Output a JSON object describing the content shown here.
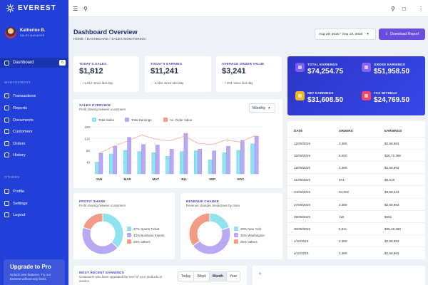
{
  "brand": {
    "name": "EVEREST"
  },
  "profile": {
    "name": "Katherine B.",
    "role": "SALES MANAGER"
  },
  "nav": {
    "dashboard_label": "Dashboard",
    "dashboard_badge": "6",
    "management_heading": "MANAGEMENT",
    "items": [
      {
        "label": "Transactions",
        "icon": "transactions-icon"
      },
      {
        "label": "Reports",
        "icon": "reports-icon"
      },
      {
        "label": "Documents",
        "icon": "documents-icon"
      },
      {
        "label": "Customers",
        "icon": "customers-icon"
      },
      {
        "label": "Orders",
        "icon": "orders-icon"
      },
      {
        "label": "History",
        "icon": "history-icon"
      }
    ],
    "others_heading": "OTHERS",
    "others": [
      {
        "label": "Profile",
        "icon": "profile-icon"
      },
      {
        "label": "Settings",
        "icon": "settings-icon"
      },
      {
        "label": "Logout",
        "icon": "logout-icon"
      }
    ]
  },
  "upgrade": {
    "title": "Upgrade to Pro",
    "text": "Unlock new features. Try out Everest without any limits"
  },
  "header": {
    "title": "Dashboard Overview",
    "breadcrumb": "HOME  /  DASHBOARD  /  SALES MONITORING",
    "date_range": "Aug 28, 2020 - Sep 19, 2020",
    "download_label": "Download Report"
  },
  "stats": [
    {
      "label": "TODAY'S SALES",
      "value": "$1,812",
      "direction": "up",
      "change": "+1,512",
      "period": "since last day"
    },
    {
      "label": "TODAY'S EARNING",
      "value": "$11,241",
      "direction": "down",
      "change": "-1,163",
      "period": "since last day"
    },
    {
      "label": "AVERAGE ORDER VALUE",
      "value": "$3,241",
      "direction": "up",
      "change": "+203",
      "period": "since last day"
    }
  ],
  "kpis": [
    {
      "label": "TOTAL EARNINGS",
      "value": "$74,254.75",
      "color": "#7b5cf5"
    },
    {
      "label": "GROSS EARNINGS",
      "value": "$51,958.50",
      "color": "#8a62f7"
    },
    {
      "label": "NET EARNINGS",
      "value": "$31,608.50",
      "color": "#f2b621"
    },
    {
      "label": "TAX WITHELD",
      "value": "$24,769.50",
      "color": "#f0476a"
    }
  ],
  "sales_overview": {
    "title": "SALES OVERVIEW",
    "subtitle": "Profit sharing between customers",
    "period_select": "Monthly",
    "chart_data": {
      "type": "bar",
      "categories": [
        "JAN",
        "FEB",
        "MAR",
        "APR",
        "MAY",
        "JUN",
        "JUL",
        "AUG",
        "SEP",
        "OCT",
        "NOV",
        "DEC"
      ],
      "tick_labels": [
        "JAN",
        "",
        "MAR",
        "",
        "MAY",
        "",
        "JUL",
        "",
        "SEP",
        "",
        "NOV",
        ""
      ],
      "ylim": [
        0,
        160
      ],
      "yticks": [
        40,
        80,
        120,
        160
      ],
      "series": [
        {
          "name": "Total Sales",
          "kind": "bar",
          "color": "#8fe3ee",
          "values": [
            40,
            68,
            80,
            76,
            72,
            60,
            76,
            78,
            48,
            72,
            80,
            102
          ]
        },
        {
          "name": "Total Earnings",
          "kind": "bar",
          "color": "#b9a9f4",
          "values": [
            70,
            94,
            124,
            100,
            98,
            84,
            138,
            84,
            78,
            94,
            114,
            128
          ]
        },
        {
          "name": "Av. Order Value",
          "kind": "line",
          "color": "#f49b86",
          "values": [
            70,
            93,
            112,
            132,
            118,
            112,
            128,
            104,
            100,
            116,
            108,
            130
          ]
        }
      ]
    }
  },
  "profit_share": {
    "title": "PROFIT SHARE",
    "subtitle": "Profit sharing between customers",
    "chart_data": {
      "type": "pie",
      "slices": [
        {
          "name": "Sports Ticket",
          "value": 37,
          "color": "#8fe3ee"
        },
        {
          "name": "Business Events",
          "value": 43,
          "color": "#b9a9f4"
        },
        {
          "name": "Others",
          "value": 20,
          "color": "#f49b86"
        }
      ]
    },
    "legend": [
      "37% Sports Ticket",
      "43% Business Events",
      "20% Others"
    ]
  },
  "revenue_change": {
    "title": "REVENUE CHANGE",
    "subtitle": "Revenue changes breakdown by cities",
    "chart_data": {
      "type": "pie",
      "slices": [
        {
          "name": "New York",
          "value": 20,
          "color": "#8fe3ee"
        },
        {
          "name": "Washington",
          "value": 45,
          "color": "#b9a9f4"
        },
        {
          "name": "Others",
          "value": 35,
          "color": "#f49b86"
        }
      ]
    },
    "legend": [
      "20% New York",
      "45% Washington",
      "35% Others"
    ]
  },
  "earnings_table": {
    "headers": [
      "DATE",
      "ORDERS",
      "EARNINGS"
    ],
    "rows": [
      [
        "12/09/2019",
        "2,369",
        "$2,58,963"
      ],
      [
        "15/09/2019",
        "8,920",
        "$26,72,388"
      ],
      [
        "18/09/2019",
        "2,369",
        "$2,58,963"
      ],
      [
        "21/09/2019",
        "671",
        "$8,618"
      ],
      [
        "24/09/2019",
        "34,902",
        "$3,89,423"
      ],
      [
        "27/09/2019",
        "2,369",
        "$2,58,963"
      ],
      [
        "28/09/2019",
        "116",
        "$281"
      ],
      [
        "30/09/2019",
        "5,811",
        "$35,48,360"
      ],
      [
        "1/10/2019",
        "2,369",
        "$2,58,963"
      ],
      [
        "4/10/2019",
        "2,369",
        "$2,58,963"
      ]
    ]
  },
  "recent_earnings": {
    "title": "MOST RECENT EARNINGS",
    "subtitle": "Customers who have upgraded the level of your products or service.",
    "tabs": [
      "Today",
      "Week",
      "Month",
      "Year"
    ],
    "active_tab": "Month"
  }
}
